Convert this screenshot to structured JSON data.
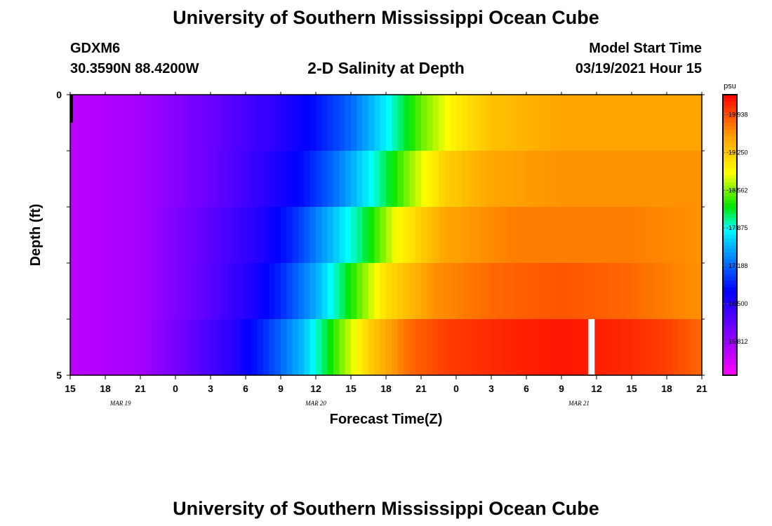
{
  "header": {
    "title": "University of Southern Mississippi Ocean Cube",
    "station_id": "GDXM6",
    "coordinates": "30.3590N 88.4200W",
    "subtitle": "2-D Salinity at Depth",
    "model_start_label": "Model Start Time",
    "model_start_value": "03/19/2021 Hour 15"
  },
  "footer": {
    "title": "University of Southern Mississippi Ocean Cube"
  },
  "chart_data": {
    "type": "heatmap",
    "xlabel": "Forecast Time(Z)",
    "ylabel": "Depth (ft)",
    "x_tick_labels": [
      "15",
      "18",
      "21",
      "0",
      "3",
      "6",
      "9",
      "12",
      "15",
      "18",
      "21",
      "0",
      "3",
      "6",
      "9",
      "12",
      "15",
      "18",
      "21"
    ],
    "x_start_hour": 15,
    "x_hours_total": 54,
    "date_labels": [
      {
        "text": "MAR  19",
        "hour": 4.3
      },
      {
        "text": "MAR  20",
        "hour": 21.0
      },
      {
        "text": "MAR  21",
        "hour": 43.5
      }
    ],
    "y_tick_labels": [
      "0",
      "5"
    ],
    "ylim": [
      0,
      5
    ],
    "depth_rows": 5,
    "colorbar": {
      "unit": "psu",
      "range": [
        15.2,
        20.3
      ],
      "tick_labels": [
        "19.938",
        "19.250",
        "18.562",
        "17.875",
        "17.188",
        "16.500",
        "15.812"
      ],
      "tick_values": [
        19.938,
        19.25,
        18.562,
        17.875,
        17.188,
        16.5,
        15.812
      ]
    },
    "salinity_profiles": [
      {
        "depth_ft": 0.5,
        "values": [
          [
            0,
            15.6
          ],
          [
            6,
            15.75
          ],
          [
            12,
            16.1
          ],
          [
            18,
            16.5
          ],
          [
            21,
            16.8
          ],
          [
            24,
            17.2
          ],
          [
            27,
            17.8
          ],
          [
            30,
            18.5
          ],
          [
            33,
            19.0
          ],
          [
            36,
            19.3
          ],
          [
            42,
            19.5
          ],
          [
            54,
            19.5
          ]
        ]
      },
      {
        "depth_ft": 1.5,
        "values": [
          [
            0,
            15.6
          ],
          [
            6,
            15.75
          ],
          [
            12,
            16.1
          ],
          [
            17,
            16.5
          ],
          [
            20,
            16.8
          ],
          [
            23,
            17.3
          ],
          [
            26,
            17.9
          ],
          [
            29,
            18.6
          ],
          [
            32,
            19.2
          ],
          [
            36,
            19.5
          ],
          [
            42,
            19.6
          ],
          [
            54,
            19.6
          ]
        ]
      },
      {
        "depth_ft": 2.5,
        "values": [
          [
            0,
            15.6
          ],
          [
            6,
            15.75
          ],
          [
            11,
            16.1
          ],
          [
            16,
            16.5
          ],
          [
            19,
            16.9
          ],
          [
            22,
            17.5
          ],
          [
            25,
            18.1
          ],
          [
            28,
            18.9
          ],
          [
            32,
            19.5
          ],
          [
            38,
            19.7
          ],
          [
            48,
            19.7
          ],
          [
            54,
            19.6
          ]
        ]
      },
      {
        "depth_ft": 3.5,
        "values": [
          [
            0,
            15.6
          ],
          [
            6,
            15.75
          ],
          [
            11,
            16.1
          ],
          [
            15,
            16.5
          ],
          [
            18,
            16.9
          ],
          [
            21,
            17.5
          ],
          [
            24,
            18.3
          ],
          [
            27,
            19.1
          ],
          [
            31,
            19.6
          ],
          [
            36,
            19.8
          ],
          [
            42,
            19.9
          ],
          [
            48,
            19.8
          ],
          [
            54,
            19.6
          ]
        ]
      },
      {
        "depth_ft": 4.5,
        "values": [
          [
            0,
            15.6
          ],
          [
            6,
            15.75
          ],
          [
            10,
            16.1
          ],
          [
            14,
            16.5
          ],
          [
            17,
            17.0
          ],
          [
            20,
            17.6
          ],
          [
            23,
            18.5
          ],
          [
            26,
            19.3
          ],
          [
            29,
            19.8
          ],
          [
            32,
            20.0
          ],
          [
            36,
            20.1
          ],
          [
            42,
            20.2
          ],
          [
            48,
            20.1
          ],
          [
            51,
            20.0
          ],
          [
            54,
            19.8
          ]
        ]
      }
    ]
  }
}
